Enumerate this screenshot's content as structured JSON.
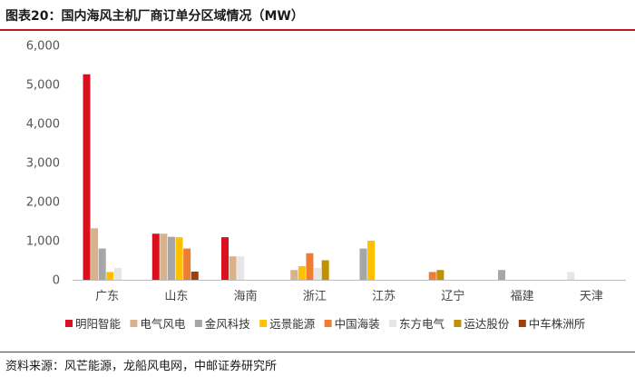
{
  "header": {
    "title": "图表20：国内海风主机厂商订单分区域情况（MW）"
  },
  "footer": {
    "source": "资料来源：风芒能源，龙船风电网，中邮证券研究所"
  },
  "chart_data": {
    "type": "bar",
    "categories": [
      "广东",
      "山东",
      "海南",
      "浙江",
      "江苏",
      "辽宁",
      "福建",
      "天津"
    ],
    "ylim": [
      0,
      6000
    ],
    "yticks": [
      0,
      1000,
      2000,
      3000,
      4000,
      5000,
      6000
    ],
    "ytick_labels": [
      "0",
      "1,000",
      "2,000",
      "3,000",
      "4,000",
      "5,000",
      "6,000"
    ],
    "legend_position": "bottom",
    "grid": false,
    "series": [
      {
        "name": "明阳智能",
        "color": "#d9101e",
        "values": [
          5260,
          1180,
          1090,
          0,
          0,
          0,
          0,
          0
        ]
      },
      {
        "name": "电气风电",
        "color": "#d9b28c",
        "values": [
          1320,
          1180,
          600,
          250,
          0,
          0,
          0,
          0
        ]
      },
      {
        "name": "金风科技",
        "color": "#a6a6a6",
        "values": [
          800,
          1100,
          0,
          0,
          800,
          0,
          250,
          0
        ]
      },
      {
        "name": "远景能源",
        "color": "#ffc000",
        "values": [
          200,
          1090,
          0,
          350,
          1000,
          0,
          0,
          0
        ]
      },
      {
        "name": "中国海装",
        "color": "#ed7d31",
        "values": [
          0,
          800,
          0,
          680,
          0,
          200,
          0,
          0
        ]
      },
      {
        "name": "东方电气",
        "color": "#e7e6e6",
        "values": [
          300,
          0,
          600,
          300,
          0,
          0,
          0,
          200
        ]
      },
      {
        "name": "运达股份",
        "color": "#bf9000",
        "values": [
          0,
          0,
          0,
          500,
          0,
          250,
          0,
          0
        ]
      },
      {
        "name": "中车株洲所",
        "color": "#9c3f0f",
        "values": [
          0,
          210,
          0,
          0,
          0,
          0,
          0,
          0
        ]
      }
    ]
  }
}
